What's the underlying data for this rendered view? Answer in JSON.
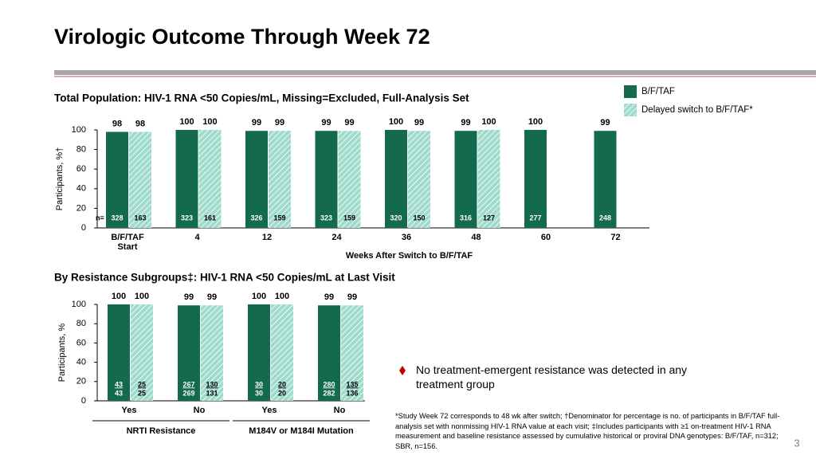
{
  "title": "Virologic Outcome Through Week 72",
  "bullet": "No treatment-emergent resistance was detected in any treatment group",
  "footnote": "*Study Week 72 corresponds to 48 wk after switch; †Denominator for percentage is no. of participants in B/F/TAF full-analysis set with nonmissing HIV-1 RNA value at each visit; ‡Includes participants with ≥1 on-treatment HIV-1 RNA measurement and baseline resistance assessed by cumulative historical or proviral DNA genotypes: B/F/TAF, n=312; SBR, n=156.",
  "page_number": "3",
  "chart_data": [
    {
      "type": "bar",
      "title": "Total Population: HIV-1 RNA <50 Copies/mL, Missing=Excluded, Full-Analysis Set",
      "y_label": "Participants, %†",
      "x_label": "Weeks After Switch to B/F/TAF",
      "categories": [
        "B/F/TAF Start",
        "4",
        "12",
        "24",
        "36",
        "48",
        "60",
        "72"
      ],
      "n_label": "n=",
      "series": [
        {
          "name": "B/F/TAF",
          "color": "#136a4c",
          "pattern": "solid",
          "values": [
            98,
            100,
            99,
            99,
            100,
            99,
            100,
            99
          ],
          "n": [
            328,
            323,
            326,
            323,
            320,
            316,
            277,
            248
          ]
        },
        {
          "name": "Delayed switch to B/F/TAF*",
          "color": "#9fdbcd",
          "pattern": "hatched",
          "values": [
            98,
            100,
            99,
            99,
            99,
            100,
            null,
            null
          ],
          "n": [
            163,
            161,
            159,
            159,
            150,
            127,
            null,
            null
          ]
        }
      ],
      "ylim": [
        0,
        100
      ],
      "yticks": [
        0,
        20,
        40,
        60,
        80,
        100
      ],
      "grid": false,
      "legend": "top-right"
    },
    {
      "type": "bar",
      "title": "By Resistance Subgroups‡: HIV-1 RNA <50 Copies/mL at Last Visit",
      "y_label": "Participants, %",
      "categories": [
        "Yes",
        "No",
        "Yes",
        "No"
      ],
      "groups": [
        "NRTI Resistance",
        "M184V or M184I Mutation"
      ],
      "series": [
        {
          "color": "#136a4c",
          "pattern": "solid",
          "values": [
            100,
            99,
            100,
            99
          ],
          "numerators": [
            43,
            267,
            30,
            280
          ],
          "denominators": [
            43,
            269,
            30,
            282
          ]
        },
        {
          "color": "#9fdbcd",
          "pattern": "hatched",
          "values": [
            100,
            99,
            100,
            99
          ],
          "numerators": [
            25,
            130,
            20,
            135
          ],
          "denominators": [
            25,
            131,
            20,
            136
          ]
        }
      ],
      "ylim": [
        0,
        100
      ],
      "yticks": [
        0,
        20,
        40,
        60,
        80,
        100
      ],
      "grid": false
    }
  ]
}
